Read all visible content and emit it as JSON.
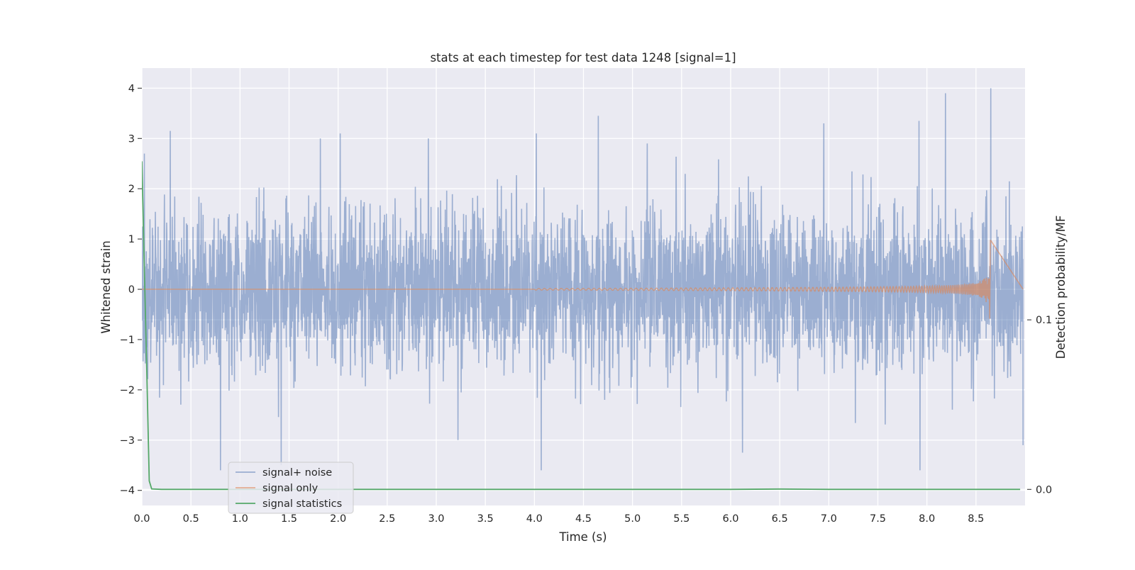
{
  "chart_data": {
    "type": "line",
    "title": "stats at each timestep for test data 1248 [signal=1]",
    "xlabel": "Time (s)",
    "ylabel": "Whitened strain",
    "y2label": "Detection probability/MF",
    "xlim": [
      0.0,
      9.0
    ],
    "ylim": [
      -4.3,
      4.4
    ],
    "y2lim": [
      -0.0095,
      0.2485
    ],
    "xticks": [
      "0.0",
      "0.5",
      "1.0",
      "1.5",
      "2.0",
      "2.5",
      "3.0",
      "3.5",
      "4.0",
      "4.5",
      "5.0",
      "5.5",
      "6.0",
      "6.5",
      "7.0",
      "7.5",
      "8.0",
      "8.5"
    ],
    "yticks": [
      "4",
      "3",
      "2",
      "1",
      "0",
      "−1",
      "−2",
      "−3",
      "−4"
    ],
    "y2ticks": [
      "0.1",
      "0.0"
    ],
    "grid": true,
    "legend_position": "lower-left",
    "series": [
      {
        "name": "signal+ noise",
        "axis": "left",
        "color": "#4c72b0",
        "opacity": 0.5,
        "description": "whitened noise with embedded signal, roughly unit variance",
        "typical_range": [
          -1.5,
          1.5
        ],
        "peaks": [
          {
            "x": 0.29,
            "y": 3.15
          },
          {
            "x": 0.8,
            "y": -3.6
          },
          {
            "x": 1.42,
            "y": -3.5
          },
          {
            "x": 1.82,
            "y": 3.0
          },
          {
            "x": 2.02,
            "y": 3.1
          },
          {
            "x": 2.92,
            "y": 3.0
          },
          {
            "x": 3.22,
            "y": -3.0
          },
          {
            "x": 4.02,
            "y": 3.1
          },
          {
            "x": 4.07,
            "y": -3.6
          },
          {
            "x": 4.65,
            "y": 3.45
          },
          {
            "x": 6.12,
            "y": -3.25
          },
          {
            "x": 6.95,
            "y": 3.3
          },
          {
            "x": 7.92,
            "y": 3.35
          },
          {
            "x": 7.93,
            "y": -3.6
          },
          {
            "x": 8.19,
            "y": 3.9
          },
          {
            "x": 8.65,
            "y": 4.0
          },
          {
            "x": 8.98,
            "y": -3.1
          }
        ]
      },
      {
        "name": "signal only",
        "axis": "left",
        "color": "#dd8452",
        "opacity": 0.6,
        "description": "chirp signal growing in amplitude and frequency, merger near 8.65 s",
        "chirp_start": 4.0,
        "merger_time": 8.65,
        "peak_amplitude": 1.15
      },
      {
        "name": "signal statistics",
        "axis": "right",
        "color": "#55a868",
        "x": [
          0.0,
          0.025,
          0.05,
          0.075,
          0.1,
          0.2,
          1.0,
          2.0,
          3.0,
          4.0,
          5.0,
          6.0,
          6.5,
          7.0,
          8.0,
          8.95
        ],
        "values": [
          0.1935,
          0.13,
          0.07,
          0.005,
          0.0003,
          0.0,
          0.0,
          0.0,
          0.0,
          0.0,
          0.0,
          0.0,
          0.0002,
          0.0,
          0.0,
          0.0
        ]
      }
    ]
  }
}
